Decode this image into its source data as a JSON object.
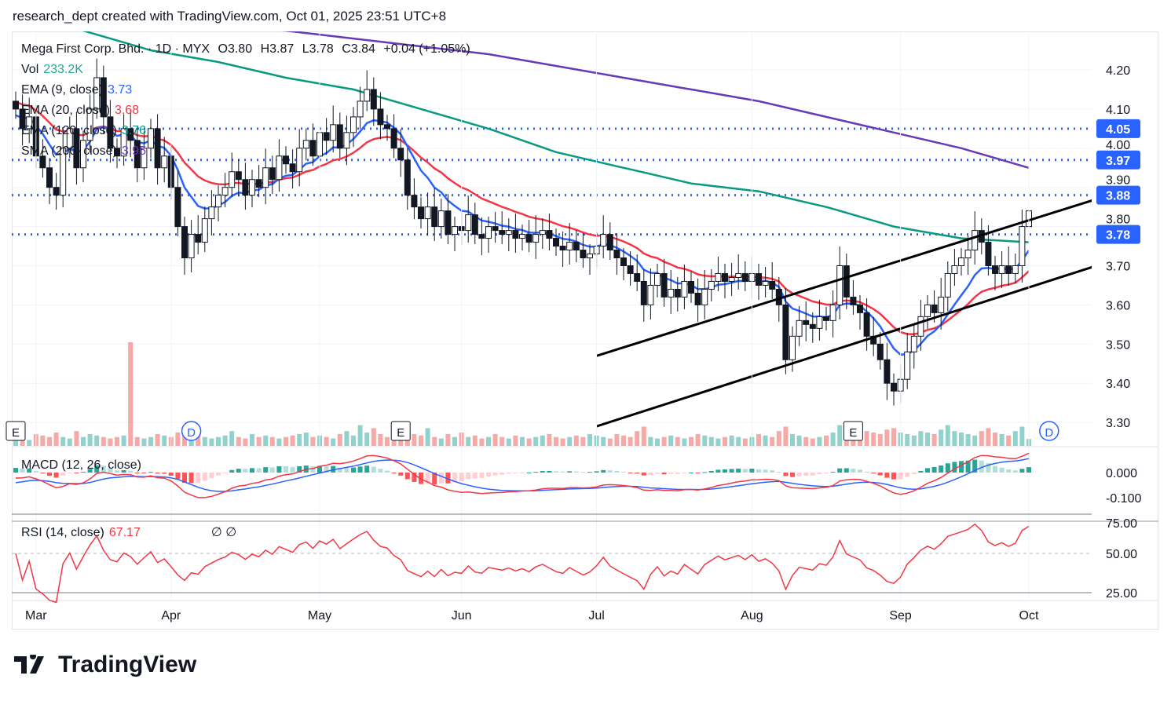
{
  "title": "research_dept created with TradingView.com, Oct 01, 2025 23:51 UTC+8",
  "legend": {
    "symbol": "Mega First Corp. Bhd. · 1D · MYX",
    "open": "O3.80",
    "high": "H3.87",
    "low": "L3.78",
    "close": "C3.84",
    "change": "+0.04 (+1.05%)",
    "vol_label": "Vol",
    "vol_value": "233.2K",
    "ema9_label": "EMA (9, close)",
    "ema9_value": "3.73",
    "ema20_label": "EMA (20, close)",
    "ema20_value": "3.68",
    "ema120_label": "EMA (120, close)",
    "ema120_value": "3.76",
    "sma200_label": "SMA (200, close)",
    "sma200_value": "3.95",
    "macd_label": "MACD (12, 26, close)",
    "rsi_label": "RSI (14, close)",
    "rsi_value": "67.17",
    "rsi_extra": "∅  ∅"
  },
  "brand": "TradingView",
  "colors": {
    "up": "#ffffff",
    "down": "#131722",
    "ema9": "#2962ff",
    "ema20": "#f23645",
    "ema120": "#089981",
    "sma200": "#673ab7",
    "level": "#2962ff",
    "macd": "#2962ff",
    "signal": "#f23645",
    "rsi": "#f23645"
  },
  "chart_data": {
    "type": "candlestick",
    "title": "Mega First Corp. Bhd. · 1D · MYX",
    "x_ticks": [
      {
        "label": "Mar",
        "bar": 3
      },
      {
        "label": "Apr",
        "bar": 23
      },
      {
        "label": "May",
        "bar": 45
      },
      {
        "label": "Jun",
        "bar": 66
      },
      {
        "label": "Jul",
        "bar": 86
      },
      {
        "label": "Aug",
        "bar": 109
      },
      {
        "label": "Sep",
        "bar": 131
      },
      {
        "label": "Oct",
        "bar": 150
      }
    ],
    "price_ticks": [
      "4.20",
      "4.10",
      "4.00",
      "3.90",
      "3.80",
      "3.70",
      "3.60",
      "3.50",
      "3.40",
      "3.30"
    ],
    "ylim": [
      3.24,
      4.3
    ],
    "closes": [
      4.1,
      4.05,
      4.08,
      3.98,
      3.95,
      3.9,
      3.88,
      4.0,
      4.05,
      3.95,
      4.02,
      4.1,
      4.18,
      4.08,
      4.0,
      3.98,
      4.05,
      4.02,
      3.95,
      4.0,
      4.05,
      3.95,
      3.98,
      3.9,
      3.8,
      3.72,
      3.78,
      3.76,
      3.82,
      3.85,
      3.88,
      3.9,
      3.94,
      3.92,
      3.88,
      3.92,
      3.9,
      3.95,
      3.92,
      3.98,
      3.96,
      3.94,
      4.0,
      4.02,
      3.98,
      4.04,
      4.02,
      4.06,
      4.0,
      4.04,
      4.08,
      4.12,
      4.15,
      4.1,
      4.06,
      4.05,
      4.0,
      3.97,
      3.88,
      3.85,
      3.82,
      3.85,
      3.8,
      3.84,
      3.78,
      3.8,
      3.79,
      3.83,
      3.78,
      3.77,
      3.8,
      3.79,
      3.78,
      3.79,
      3.77,
      3.78,
      3.76,
      3.78,
      3.79,
      3.77,
      3.75,
      3.74,
      3.76,
      3.74,
      3.72,
      3.73,
      3.75,
      3.78,
      3.74,
      3.72,
      3.7,
      3.68,
      3.66,
      3.6,
      3.65,
      3.68,
      3.62,
      3.64,
      3.62,
      3.66,
      3.63,
      3.6,
      3.64,
      3.66,
      3.68,
      3.66,
      3.67,
      3.68,
      3.66,
      3.68,
      3.65,
      3.66,
      3.64,
      3.6,
      3.46,
      3.52,
      3.56,
      3.55,
      3.54,
      3.57,
      3.56,
      3.6,
      3.7,
      3.62,
      3.6,
      3.58,
      3.52,
      3.5,
      3.46,
      3.4,
      3.38,
      3.41,
      3.48,
      3.52,
      3.57,
      3.6,
      3.58,
      3.62,
      3.68,
      3.7,
      3.72,
      3.74,
      3.79,
      3.76,
      3.7,
      3.68,
      3.7,
      3.68,
      3.7,
      3.8,
      3.84
    ],
    "volumes_k": [
      300,
      250,
      200,
      400,
      350,
      300,
      450,
      300,
      250,
      500,
      300,
      400,
      350,
      300,
      250,
      300,
      350,
      3500,
      300,
      250,
      300,
      400,
      350,
      300,
      450,
      350,
      500,
      400,
      300,
      250,
      300,
      350,
      500,
      300,
      250,
      400,
      300,
      350,
      300,
      250,
      300,
      350,
      400,
      450,
      300,
      350,
      300,
      250,
      400,
      500,
      350,
      700,
      450,
      600,
      400,
      300,
      350,
      450,
      300,
      400,
      350,
      600,
      300,
      250,
      400,
      300,
      450,
      300,
      350,
      250,
      300,
      400,
      300,
      250,
      350,
      300,
      250,
      300,
      350,
      400,
      300,
      250,
      300,
      350,
      300,
      400,
      350,
      300,
      250,
      400,
      350,
      300,
      500,
      650,
      300,
      250,
      300,
      350,
      300,
      250,
      300,
      400,
      350,
      300,
      250,
      300,
      350,
      300,
      250,
      300,
      400,
      350,
      300,
      500,
      650,
      400,
      350,
      300,
      250,
      300,
      350,
      450,
      700,
      400,
      300,
      350,
      500,
      450,
      400,
      550,
      600,
      450,
      400,
      350,
      500,
      450,
      400,
      550,
      700,
      500,
      450,
      400,
      350,
      500,
      600,
      450,
      400,
      350,
      500,
      650,
      233.2
    ],
    "ema120_samples": [
      4.38,
      4.3,
      4.25,
      4.22,
      4.18,
      4.15,
      4.1,
      4.05,
      3.99,
      3.95,
      3.91,
      3.89,
      3.85,
      3.8,
      3.77,
      3.76
    ],
    "sma200_samples": [
      4.36,
      4.34,
      4.32,
      4.31,
      4.3,
      4.28,
      4.26,
      4.24,
      4.21,
      4.18,
      4.15,
      4.12,
      4.08,
      4.04,
      4.0,
      3.95
    ],
    "levels": [
      "4.05",
      "3.97",
      "3.88",
      "3.78"
    ],
    "trendlines": [
      {
        "from": [
          86,
          3.47
        ],
        "to": [
          160,
          3.87
        ]
      },
      {
        "from": [
          86,
          3.29
        ],
        "to": [
          160,
          3.7
        ]
      }
    ],
    "events": [
      {
        "type": "E",
        "bar": 0
      },
      {
        "type": "D",
        "bar": 26
      },
      {
        "type": "E",
        "bar": 57
      },
      {
        "type": "E",
        "bar": 124
      },
      {
        "type": "D",
        "bar": 153
      }
    ],
    "macd_ticks": [
      "0.000",
      "-0.100"
    ],
    "rsi_ticks": [
      "75.00",
      "50.00",
      "25.00"
    ]
  }
}
